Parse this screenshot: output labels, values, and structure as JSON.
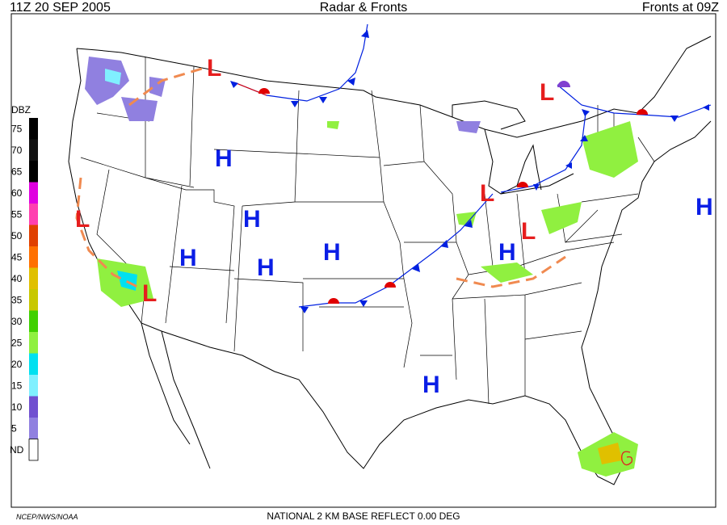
{
  "header": {
    "left": "11Z  20 SEP  2005",
    "center": "Radar & Fronts",
    "right": "Fronts at 09Z"
  },
  "legend": {
    "title": "DBZ",
    "levels": [
      75,
      70,
      65,
      60,
      55,
      50,
      45,
      40,
      35,
      30,
      25,
      20,
      15,
      10,
      5
    ],
    "colors": [
      "#000000",
      "#111111",
      "#000000",
      "#e000e0",
      "#ff40b0",
      "#e04000",
      "#ff7000",
      "#e0c000",
      "#c8c800",
      "#40d000",
      "#90f040",
      "#00e0f0",
      "#80f0ff",
      "#7050d0",
      "#9080e0"
    ],
    "nd_label": "ND",
    "nd_color": "#ffffff"
  },
  "pressure_centers": [
    "L",
    "H",
    "H",
    "H",
    "H",
    "H",
    "H",
    "H",
    "H",
    "L",
    "L",
    "L",
    "L",
    "L"
  ],
  "footer": {
    "credit": "NCEP/NWS/NOAA",
    "product": "NATIONAL 2 KM BASE REFLECT 0.00 DEG"
  }
}
